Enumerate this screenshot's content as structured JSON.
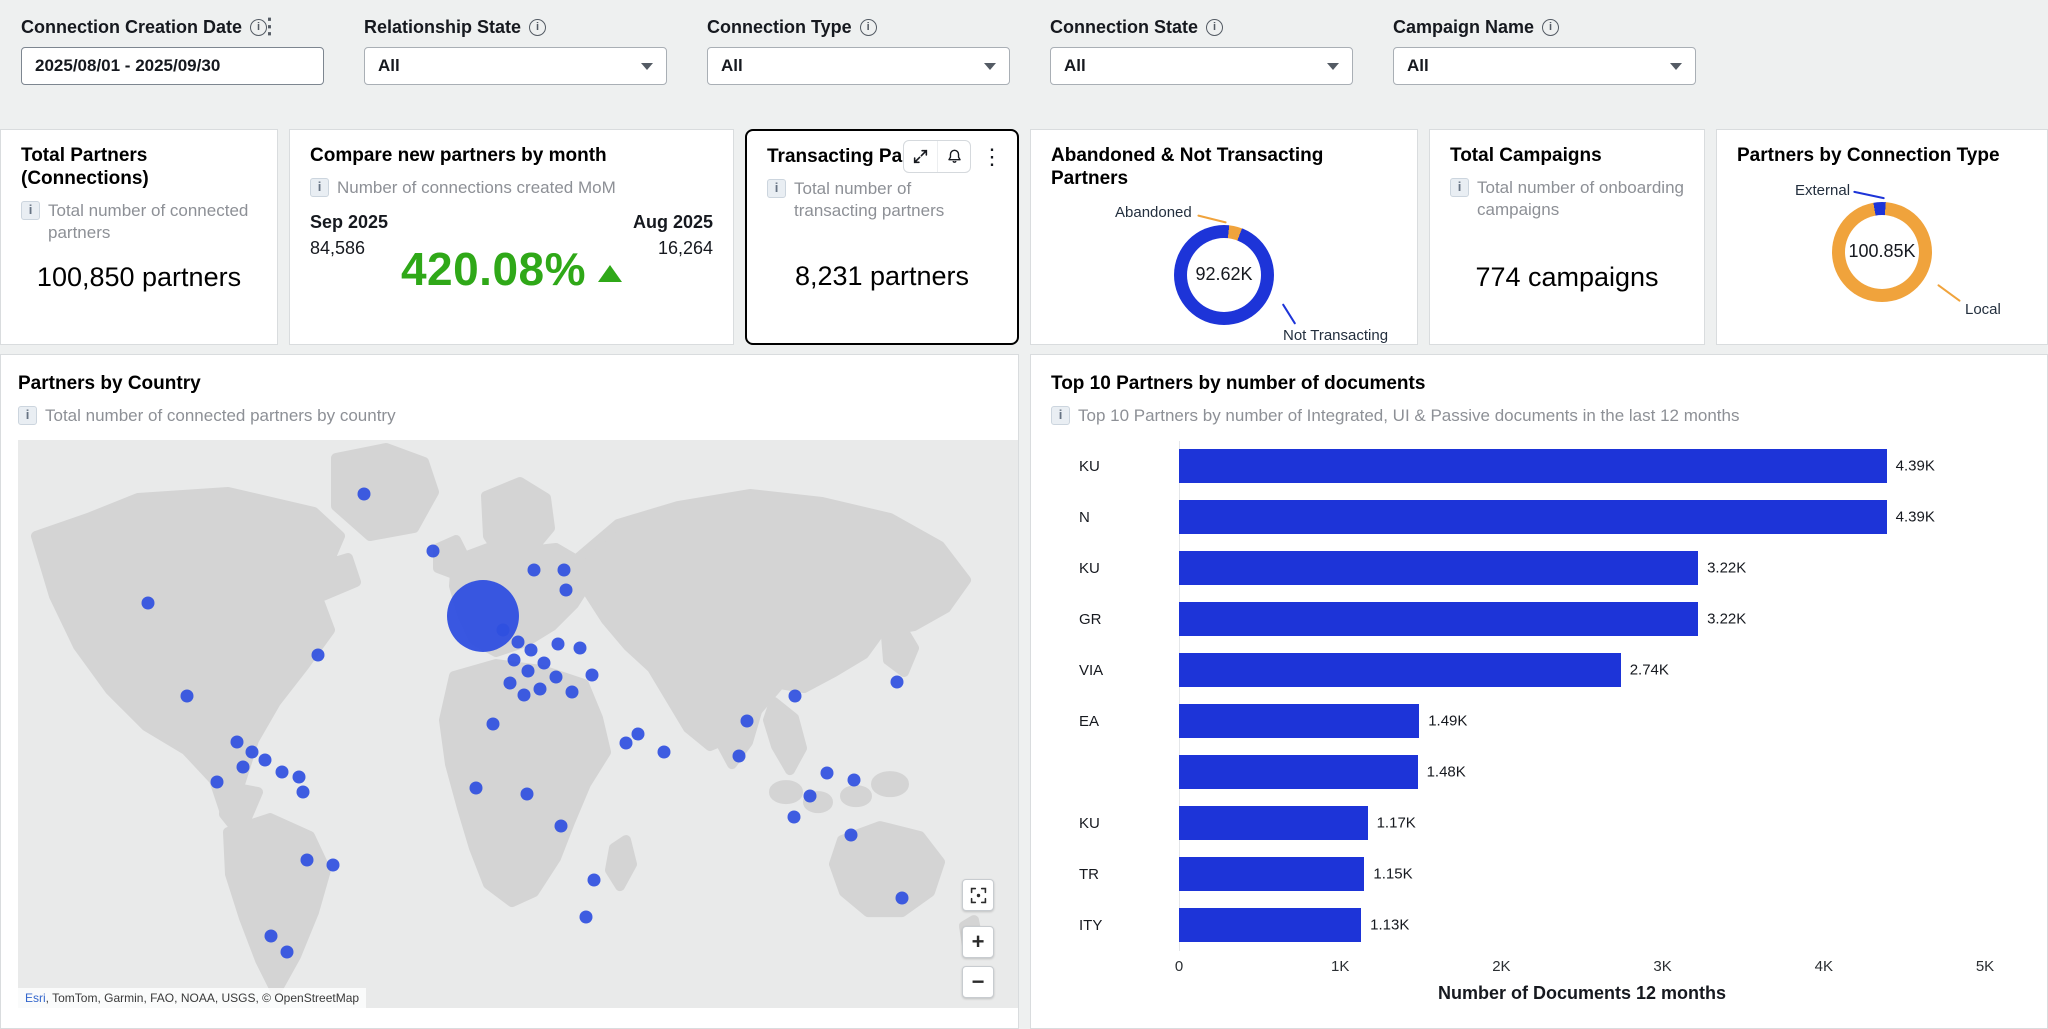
{
  "colors": {
    "accent_blue": "#1d34d8",
    "orange": "#f0a33c",
    "green": "#2fa818",
    "map_dot_blue": "#2f4fe0",
    "selected_card_border": "#000000"
  },
  "icons": {
    "filter_info": "info-circle-icon",
    "card_info": "info-square-icon",
    "kebab": "kebab-menu-icon",
    "dropdown_caret": "caret-down-icon",
    "expand": "expand-icon",
    "bell": "bell-icon",
    "focus": "focus-extent-icon",
    "zoom_in": "plus-icon",
    "zoom_out": "minus-icon",
    "trend_up": "up-triangle-icon"
  },
  "filters": [
    {
      "label": "Connection Creation Date",
      "value": "2025/08/01 - 2025/09/30"
    },
    {
      "label": "Relationship State",
      "value": "All"
    },
    {
      "label": "Connection Type",
      "value": "All"
    },
    {
      "label": "Connection State",
      "value": "All"
    },
    {
      "label": "Campaign Name",
      "value": "All"
    }
  ],
  "kpi": {
    "total_partners": {
      "title": "Total Partners (Connections)",
      "subtitle": "Total number of connected partners",
      "value": "100,850 partners"
    },
    "compare": {
      "title": "Compare new partners by month",
      "subtitle": "Number of connections created MoM",
      "current_month": "Sep 2025",
      "current_value": "84,586",
      "previous_month": "Aug 2025",
      "previous_value": "16,264",
      "percent": "420.08%",
      "trend": "up"
    },
    "transacting": {
      "title": "Transacting Partners",
      "subtitle": "Total number of transacting partners",
      "value": "8,231 partners"
    },
    "abandoned": {
      "title": "Abandoned & Not Transacting Partners"
    },
    "campaigns": {
      "title": "Total Campaigns",
      "subtitle": "Total number of onboarding campaigns",
      "value": "774 campaigns"
    },
    "connection_type": {
      "title": "Partners by Connection Type"
    }
  },
  "map_card": {
    "title": "Partners by Country",
    "subtitle": "Total number of connected partners by country",
    "attribution_esri": "Esri",
    "attribution_rest": ", TomTom, Garmin, FAO, NOAA, USGS, © OpenStreetMap"
  },
  "bar_card": {
    "title": "Top 10 Partners by number of documents",
    "subtitle": "Top 10 Partners by number of Integrated, UI & Passive documents in the last 12 months"
  },
  "chart_data": [
    {
      "type": "pie",
      "name": "abandoned_not_transacting_donut",
      "title": "Abandoned & Not Transacting Partners",
      "center_label": "92.62K",
      "start_deg": 6,
      "slices": [
        {
          "label": "Abandoned",
          "color": "#f0a33c",
          "fraction": 0.042
        },
        {
          "label": "Not Transacting",
          "color": "#1d34d8",
          "fraction": 0.958
        }
      ]
    },
    {
      "type": "pie",
      "name": "partners_by_connection_type_donut",
      "title": "Partners by Connection Type",
      "center_label": "100.85K",
      "start_deg": -10,
      "slices": [
        {
          "label": "External",
          "color": "#1d34d8",
          "fraction": 0.04
        },
        {
          "label": "Local",
          "color": "#f0a33c",
          "fraction": 0.96
        }
      ]
    },
    {
      "type": "scatter",
      "name": "partners_by_country_map",
      "title": "Partners by Country",
      "points": [
        {
          "x": 34.6,
          "y": 9.5
        },
        {
          "x": 41.5,
          "y": 19.5
        },
        {
          "x": 51.6,
          "y": 22.9
        },
        {
          "x": 54.6,
          "y": 22.9
        },
        {
          "x": 54.8,
          "y": 26.4
        },
        {
          "x": 13.0,
          "y": 28.7
        },
        {
          "x": 30.0,
          "y": 37.8
        },
        {
          "x": 16.9,
          "y": 45.0
        },
        {
          "x": 19.9,
          "y": 60.3
        },
        {
          "x": 21.9,
          "y": 53.2
        },
        {
          "x": 23.4,
          "y": 55.0
        },
        {
          "x": 22.5,
          "y": 57.5
        },
        {
          "x": 24.7,
          "y": 56.4
        },
        {
          "x": 26.4,
          "y": 58.5
        },
        {
          "x": 28.1,
          "y": 59.4
        },
        {
          "x": 28.5,
          "y": 61.9
        },
        {
          "x": 28.9,
          "y": 73.9
        },
        {
          "x": 31.5,
          "y": 74.8
        },
        {
          "x": 25.3,
          "y": 87.4
        },
        {
          "x": 26.9,
          "y": 90.1
        },
        {
          "x": 46.5,
          "y": 31.0,
          "big": true
        },
        {
          "x": 48.5,
          "y": 33.5
        },
        {
          "x": 50.0,
          "y": 35.5
        },
        {
          "x": 51.3,
          "y": 37.0
        },
        {
          "x": 49.6,
          "y": 38.8
        },
        {
          "x": 51.0,
          "y": 40.6
        },
        {
          "x": 52.6,
          "y": 39.2
        },
        {
          "x": 53.8,
          "y": 41.7
        },
        {
          "x": 52.2,
          "y": 43.8
        },
        {
          "x": 55.4,
          "y": 44.3
        },
        {
          "x": 49.2,
          "y": 42.8
        },
        {
          "x": 56.2,
          "y": 36.6
        },
        {
          "x": 57.4,
          "y": 41.3
        },
        {
          "x": 54.0,
          "y": 36.0
        },
        {
          "x": 50.6,
          "y": 44.9
        },
        {
          "x": 47.5,
          "y": 50.0
        },
        {
          "x": 45.8,
          "y": 61.2
        },
        {
          "x": 50.9,
          "y": 62.4
        },
        {
          "x": 54.3,
          "y": 67.9
        },
        {
          "x": 57.6,
          "y": 77.5
        },
        {
          "x": 56.8,
          "y": 83.9
        },
        {
          "x": 60.8,
          "y": 53.4
        },
        {
          "x": 62.0,
          "y": 51.8
        },
        {
          "x": 64.6,
          "y": 55.0
        },
        {
          "x": 72.1,
          "y": 55.7
        },
        {
          "x": 72.9,
          "y": 49.5
        },
        {
          "x": 77.7,
          "y": 45.0
        },
        {
          "x": 87.9,
          "y": 42.7
        },
        {
          "x": 79.2,
          "y": 62.6
        },
        {
          "x": 80.9,
          "y": 58.7
        },
        {
          "x": 83.6,
          "y": 59.9
        },
        {
          "x": 77.6,
          "y": 66.3
        },
        {
          "x": 83.3,
          "y": 69.5
        },
        {
          "x": 88.4,
          "y": 80.7
        }
      ]
    },
    {
      "type": "bar",
      "name": "top10_partners_by_documents",
      "orientation": "horizontal",
      "title": "Top 10 Partners by number of documents",
      "categories": [
        "KU",
        "N",
        "KU",
        "GR",
        "VIA",
        "EA",
        "",
        "KU",
        "TR",
        "ITY"
      ],
      "values": [
        4390,
        4390,
        3220,
        3220,
        2740,
        1490,
        1480,
        1170,
        1150,
        1130
      ],
      "value_labels": [
        "4.39K",
        "4.39K",
        "3.22K",
        "3.22K",
        "2.74K",
        "1.49K",
        "1.48K",
        "1.17K",
        "1.15K",
        "1.13K"
      ],
      "xlim": [
        0,
        5000
      ],
      "xticks": [
        "0",
        "1K",
        "2K",
        "3K",
        "4K",
        "5K"
      ],
      "xlabel": "Number of Documents 12 months",
      "grid": false,
      "legend": false
    }
  ]
}
